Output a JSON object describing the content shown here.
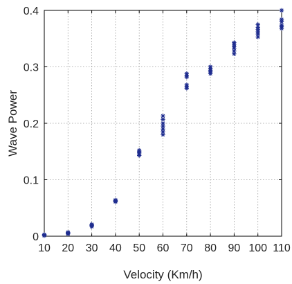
{
  "chart_data": {
    "type": "scatter",
    "title": "",
    "xlabel": "Velocity (Km/h)",
    "ylabel": "Wave Power",
    "xlim": [
      10,
      110
    ],
    "ylim": [
      0,
      0.4
    ],
    "xticks": [
      10,
      20,
      30,
      40,
      50,
      60,
      70,
      80,
      90,
      100,
      110
    ],
    "yticks": [
      0,
      0.1,
      0.2,
      0.3,
      0.4
    ],
    "xtick_labels": [
      "10",
      "20",
      "30",
      "40",
      "50",
      "60",
      "70",
      "80",
      "90",
      "100",
      "110"
    ],
    "ytick_labels": [
      "0",
      "0.1",
      "0.2",
      "0.3",
      "0.4"
    ],
    "grid": true,
    "marker": "star",
    "colors": {
      "marker": "#1f2d8f",
      "grid": "#9a9a9a",
      "axis": "#000000"
    },
    "series": [
      {
        "points": [
          [
            10,
            0.001
          ],
          [
            10,
            0.002
          ],
          [
            10,
            0.003
          ],
          [
            20,
            0.004
          ],
          [
            20,
            0.005
          ],
          [
            20,
            0.006
          ],
          [
            20,
            0.007
          ],
          [
            30,
            0.017
          ],
          [
            30,
            0.019
          ],
          [
            30,
            0.02
          ],
          [
            30,
            0.021
          ],
          [
            40,
            0.061
          ],
          [
            40,
            0.062
          ],
          [
            40,
            0.063
          ],
          [
            40,
            0.064
          ],
          [
            50,
            0.143
          ],
          [
            50,
            0.146
          ],
          [
            50,
            0.148
          ],
          [
            50,
            0.15
          ],
          [
            50,
            0.152
          ],
          [
            60,
            0.18
          ],
          [
            60,
            0.185
          ],
          [
            60,
            0.19
          ],
          [
            60,
            0.195
          ],
          [
            60,
            0.2
          ],
          [
            60,
            0.207
          ],
          [
            60,
            0.213
          ],
          [
            70,
            0.262
          ],
          [
            70,
            0.265
          ],
          [
            70,
            0.268
          ],
          [
            70,
            0.282
          ],
          [
            70,
            0.285
          ],
          [
            70,
            0.288
          ],
          [
            80,
            0.288
          ],
          [
            80,
            0.291
          ],
          [
            80,
            0.294
          ],
          [
            80,
            0.297
          ],
          [
            80,
            0.3
          ],
          [
            90,
            0.323
          ],
          [
            90,
            0.328
          ],
          [
            90,
            0.333
          ],
          [
            90,
            0.336
          ],
          [
            90,
            0.34
          ],
          [
            90,
            0.343
          ],
          [
            100,
            0.353
          ],
          [
            100,
            0.358
          ],
          [
            100,
            0.362
          ],
          [
            100,
            0.366
          ],
          [
            100,
            0.37
          ],
          [
            100,
            0.375
          ],
          [
            110,
            0.368
          ],
          [
            110,
            0.371
          ],
          [
            110,
            0.374
          ],
          [
            110,
            0.38
          ],
          [
            110,
            0.384
          ],
          [
            110,
            0.4
          ]
        ]
      }
    ]
  }
}
